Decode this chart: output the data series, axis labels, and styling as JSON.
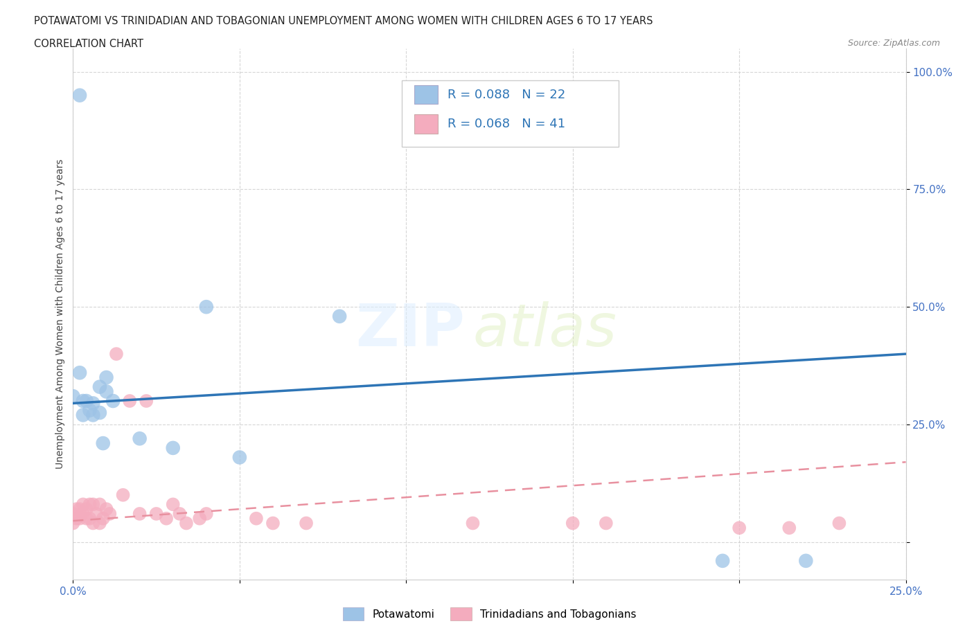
{
  "title_line1": "POTAWATOMI VS TRINIDADIAN AND TOBAGONIAN UNEMPLOYMENT AMONG WOMEN WITH CHILDREN AGES 6 TO 17 YEARS",
  "title_line2": "CORRELATION CHART",
  "source_text": "Source: ZipAtlas.com",
  "ylabel": "Unemployment Among Women with Children Ages 6 to 17 years",
  "xlim": [
    0.0,
    0.25
  ],
  "ylim": [
    -0.08,
    1.05
  ],
  "potawatomi_color": "#9DC3E6",
  "trinidadian_color": "#F4ACBE",
  "potawatomi_line_color": "#2E75B6",
  "trinidadian_line_color": "#E8909F",
  "R_potawatomi": 0.088,
  "N_potawatomi": 22,
  "R_trinidadian": 0.068,
  "N_trinidadian": 41,
  "watermark_zip": "ZIP",
  "watermark_atlas": "atlas",
  "background_color": "#FFFFFF",
  "grid_color": "#CCCCCC",
  "potawatomi_x": [
    0.0,
    0.002,
    0.003,
    0.004,
    0.005,
    0.006,
    0.008,
    0.009,
    0.01,
    0.012,
    0.02,
    0.04,
    0.08,
    0.195,
    0.22,
    0.01,
    0.03,
    0.05,
    0.002,
    0.008,
    0.006,
    0.003
  ],
  "potawatomi_y": [
    0.31,
    0.95,
    0.3,
    0.3,
    0.28,
    0.295,
    0.275,
    0.21,
    0.35,
    0.3,
    0.22,
    0.5,
    0.48,
    -0.04,
    -0.04,
    0.32,
    0.2,
    0.18,
    0.36,
    0.33,
    0.27,
    0.27
  ],
  "trinidadian_x": [
    0.0,
    0.0,
    0.001,
    0.001,
    0.002,
    0.002,
    0.003,
    0.003,
    0.004,
    0.004,
    0.005,
    0.005,
    0.006,
    0.006,
    0.007,
    0.008,
    0.008,
    0.009,
    0.01,
    0.011,
    0.013,
    0.015,
    0.017,
    0.02,
    0.022,
    0.025,
    0.028,
    0.03,
    0.032,
    0.034,
    0.038,
    0.04,
    0.055,
    0.06,
    0.07,
    0.12,
    0.15,
    0.16,
    0.2,
    0.215,
    0.23
  ],
  "trinidadian_y": [
    0.06,
    0.04,
    0.05,
    0.07,
    0.05,
    0.07,
    0.06,
    0.08,
    0.05,
    0.07,
    0.05,
    0.08,
    0.04,
    0.08,
    0.06,
    0.04,
    0.08,
    0.05,
    0.07,
    0.06,
    0.4,
    0.1,
    0.3,
    0.06,
    0.3,
    0.06,
    0.05,
    0.08,
    0.06,
    0.04,
    0.05,
    0.06,
    0.05,
    0.04,
    0.04,
    0.04,
    0.04,
    0.04,
    0.03,
    0.03,
    0.04
  ]
}
